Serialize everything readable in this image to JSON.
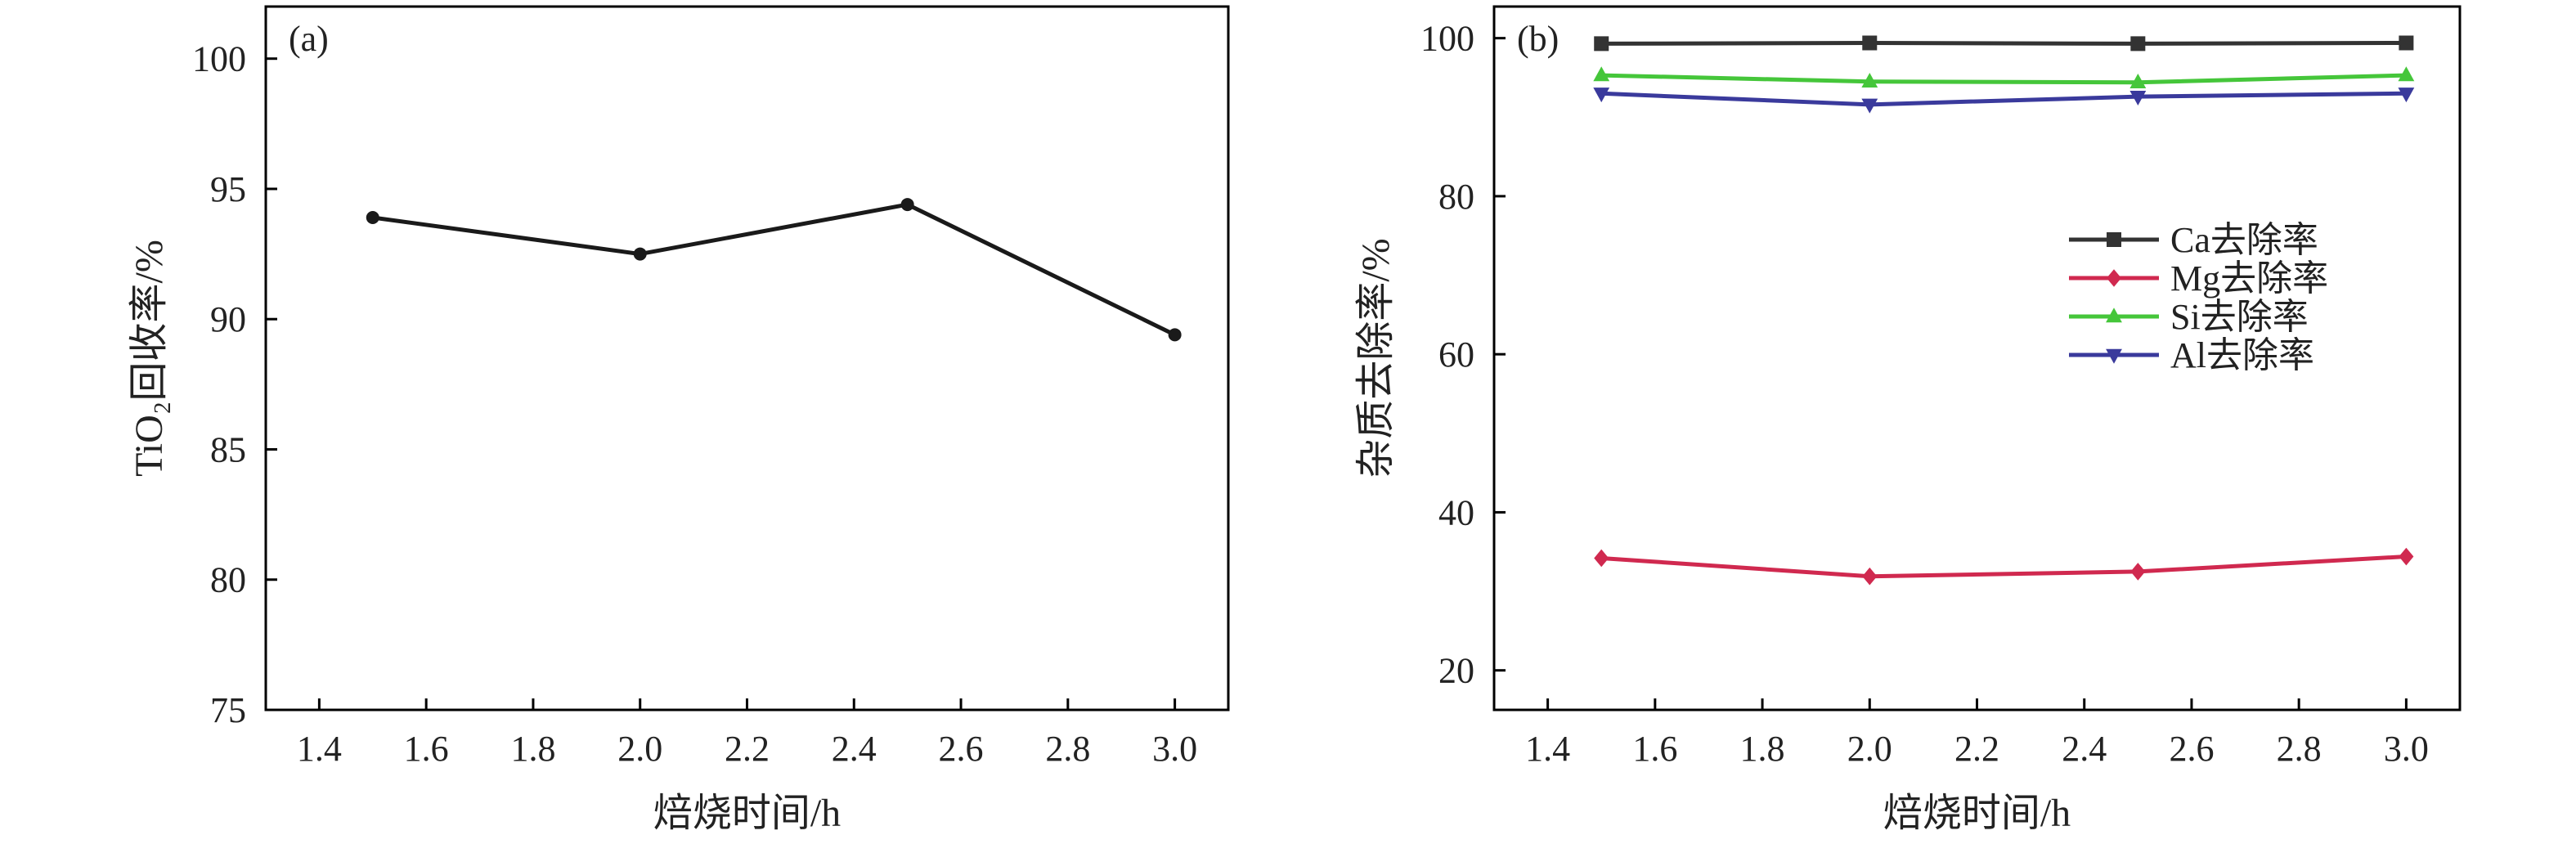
{
  "chart_data": [
    {
      "type": "line",
      "panel_label": "(a)",
      "xlabel": "焙烧时间/h",
      "ylabel": "TiO₂回收率/%",
      "xlim": [
        1.3,
        3.1
      ],
      "ylim": [
        75,
        102
      ],
      "xticks": [
        1.4,
        1.6,
        1.8,
        2.0,
        2.2,
        2.4,
        2.6,
        2.8,
        3.0
      ],
      "xtick_labels": [
        "1.4",
        "1.6",
        "1.8",
        "2.0",
        "2.2",
        "2.4",
        "2.6",
        "2.8",
        "3.0"
      ],
      "yticks": [
        75,
        80,
        85,
        90,
        95,
        100
      ],
      "ytick_labels": [
        "75",
        "80",
        "85",
        "90",
        "95",
        "100"
      ],
      "grid": false,
      "series": [
        {
          "color": "#1a1a1a",
          "marker": "circle",
          "x": [
            1.5,
            2.0,
            2.5,
            3.0
          ],
          "y": [
            93.9,
            92.5,
            94.4,
            89.4
          ]
        }
      ]
    },
    {
      "type": "line",
      "panel_label": "(b)",
      "xlabel": "焙烧时间/h",
      "ylabel": "杂质去除率/%",
      "xlim": [
        1.3,
        3.1
      ],
      "ylim": [
        15,
        104
      ],
      "xticks": [
        1.4,
        1.6,
        1.8,
        2.0,
        2.2,
        2.4,
        2.6,
        2.8,
        3.0
      ],
      "xtick_labels": [
        "1.4",
        "1.6",
        "1.8",
        "2.0",
        "2.2",
        "2.4",
        "2.6",
        "2.8",
        "3.0"
      ],
      "yticks": [
        20,
        40,
        60,
        80,
        100
      ],
      "ytick_labels": [
        "20",
        "40",
        "60",
        "80",
        "100"
      ],
      "grid": false,
      "legend_position": "center-right",
      "series": [
        {
          "name": "Ca去除率",
          "color": "#333333",
          "marker": "square",
          "x": [
            1.5,
            2.0,
            2.5,
            3.0
          ],
          "y": [
            99.3,
            99.4,
            99.3,
            99.4
          ]
        },
        {
          "name": "Mg去除率",
          "color": "#d0294f",
          "marker": "diamond",
          "x": [
            1.5,
            2.0,
            2.5,
            3.0
          ],
          "y": [
            34.2,
            31.9,
            32.5,
            34.4
          ]
        },
        {
          "name": "Si去除率",
          "color": "#45c63a",
          "marker": "triangle-up",
          "x": [
            1.5,
            2.0,
            2.5,
            3.0
          ],
          "y": [
            95.3,
            94.5,
            94.4,
            95.3
          ]
        },
        {
          "name": "Al去除率",
          "color": "#3a3a9c",
          "marker": "triangle-down",
          "x": [
            1.5,
            2.0,
            2.5,
            3.0
          ],
          "y": [
            93.0,
            91.6,
            92.6,
            93.0
          ]
        }
      ]
    }
  ]
}
